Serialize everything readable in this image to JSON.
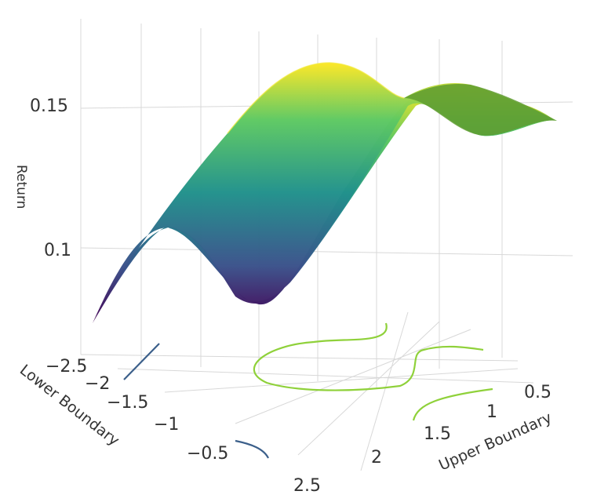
{
  "chart_data": {
    "type": "surface",
    "colorscale": "viridis",
    "colors": [
      "#440154",
      "#3b528b",
      "#21918c",
      "#5ec962",
      "#fde725"
    ],
    "contour_colors": {
      "low": "#3b5f8a",
      "high": "#8fd13a"
    },
    "x_axis": {
      "title": "Upper Boundary",
      "ticks": [
        "0.5",
        "1",
        "1.5",
        "2",
        "2.5"
      ],
      "range": [
        0.5,
        2.5
      ]
    },
    "y_axis": {
      "title": "Lower Boundary",
      "ticks": [
        "−2.5",
        "−2",
        "−1.5",
        "−1",
        "−0.5"
      ],
      "range": [
        -2.5,
        -0.5
      ]
    },
    "z_axis": {
      "title": "Return",
      "ticks": [
        "0.1",
        "0.15"
      ],
      "range": [
        0.08,
        0.17
      ]
    },
    "surface_slices": [
      {
        "lower": -2.5,
        "returns": [
          0.081,
          0.11,
          0.12,
          0.112,
          0.096
        ]
      },
      {
        "lower": -2.0,
        "returns": [
          0.1,
          0.136,
          0.15,
          0.14,
          0.117
        ]
      },
      {
        "lower": -1.5,
        "returns": [
          0.112,
          0.152,
          0.165,
          0.154,
          0.13
        ]
      },
      {
        "lower": -1.0,
        "returns": [
          0.116,
          0.155,
          0.159,
          0.15,
          0.139
        ]
      },
      {
        "lower": -0.5,
        "returns": [
          0.114,
          0.15,
          0.152,
          0.141,
          0.13
        ]
      }
    ],
    "grid": true,
    "legend": "none"
  }
}
